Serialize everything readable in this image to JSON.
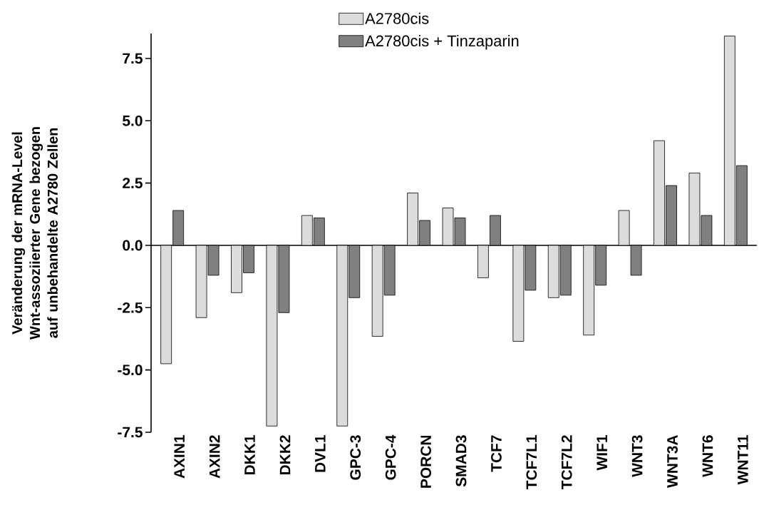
{
  "chart_data": {
    "type": "bar",
    "ylabel": "Veränderung der mRNA-Level Wnt-assoziierter Gene bezogen auf unbehandelte A2780 Zellen",
    "categories": [
      "AXIN1",
      "AXIN2",
      "DKK1",
      "DKK2",
      "DVL1",
      "GPC-3",
      "GPC-4",
      "PORCN",
      "SMAD3",
      "TCF7",
      "TCF7L1",
      "TCF7L2",
      "WIF1",
      "WNT3",
      "WNT3A",
      "WNT6",
      "WNT11"
    ],
    "series": [
      {
        "name": "A2780cis",
        "color": "#dcdcdc",
        "values": [
          -4.75,
          -2.9,
          -1.9,
          -7.25,
          1.2,
          -7.25,
          -3.65,
          2.1,
          1.5,
          -1.3,
          -3.85,
          -2.1,
          -3.6,
          1.4,
          4.2,
          2.9,
          8.4
        ]
      },
      {
        "name": "A2780cis + Tinzaparin",
        "color": "#808080",
        "values": [
          1.4,
          -1.2,
          -1.1,
          -2.7,
          1.1,
          -2.1,
          -2.0,
          1.0,
          1.1,
          1.2,
          -1.8,
          -2.0,
          -1.6,
          -1.2,
          2.4,
          1.2,
          3.2
        ]
      }
    ],
    "ylim": [
      -7.5,
      8.5
    ],
    "yticks": [
      {
        "value": -7.5,
        "label": "-7.5"
      },
      {
        "value": -5,
        "label": "-5.0"
      },
      {
        "value": -2.5,
        "label": "-2.5"
      },
      {
        "value": 0,
        "label": "0.0"
      },
      {
        "value": 2.5,
        "label": "2.5"
      },
      {
        "value": 5,
        "label": "5.0"
      },
      {
        "value": 7.5,
        "label": "7.5"
      }
    ],
    "legend": "top"
  }
}
